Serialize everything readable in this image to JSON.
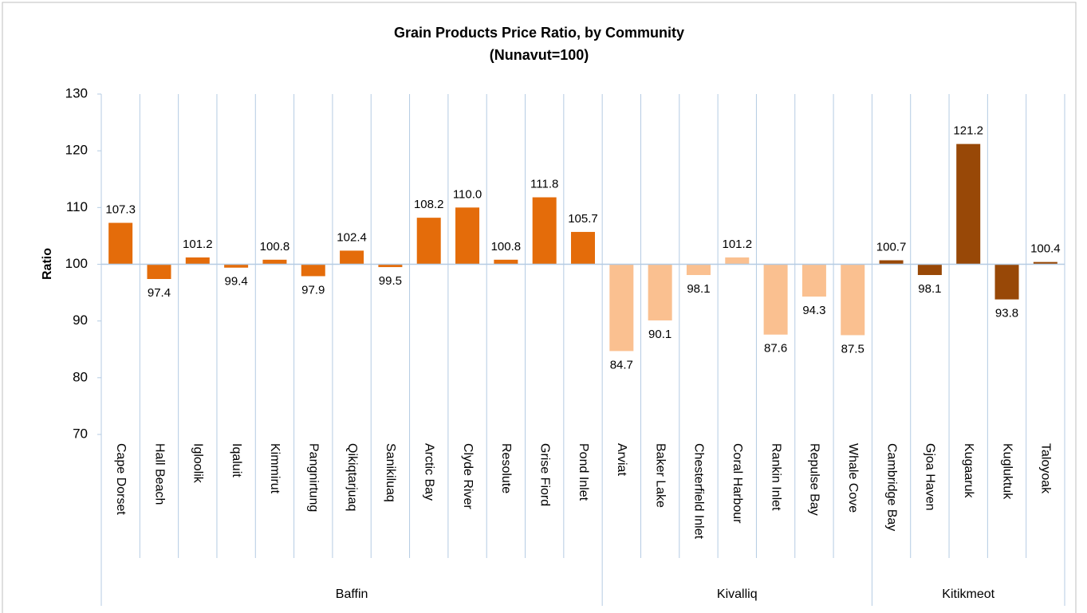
{
  "chart_data": {
    "type": "bar",
    "title": "Grain Products Price Ratio, by Community",
    "subtitle": "(Nunavut=100)",
    "y_label": "Ratio",
    "ylim": [
      70,
      130
    ],
    "yticks": [
      70,
      80,
      90,
      100,
      110,
      120,
      130
    ],
    "bar_base": 100,
    "grid": true,
    "groups": [
      {
        "name": "Baffin",
        "color": "#e46c0a",
        "categories": [
          "Cape Dorset",
          "Hall Beach",
          "Igloolik",
          "Iqaluit",
          "Kimmirut",
          "Pangnirtung",
          "Qikiqtarjuaq",
          "Sanikiluaq",
          "Arctic Bay",
          "Clyde River",
          "Resolute",
          "Grise Fiord",
          "Pond Inlet"
        ],
        "values": [
          107.3,
          97.4,
          101.2,
          99.4,
          100.8,
          97.9,
          102.4,
          99.5,
          108.2,
          110,
          100.8,
          111.8,
          105.7
        ],
        "value_labels": [
          "107.3",
          "97.4",
          "101.2",
          "99.4",
          "100.8",
          "97.9",
          "102.4",
          "99.5",
          "108.2",
          "110.0",
          "100.8",
          "111.8",
          "105.7"
        ]
      },
      {
        "name": "Kivalliq",
        "color": "#fac090",
        "categories": [
          "Arviat",
          "Baker Lake",
          "Chesterfield Inlet",
          "Coral Harbour",
          "Rankin Inlet",
          "Repulse Bay",
          "Whale Cove"
        ],
        "values": [
          84.7,
          90.1,
          98.1,
          101.2,
          87.6,
          94.3,
          87.5
        ],
        "value_labels": [
          "84.7",
          "90.1",
          "98.1",
          "101.2",
          "87.6",
          "94.3",
          "87.5"
        ]
      },
      {
        "name": "Kitikmeot",
        "color": "#984807",
        "categories": [
          "Cambridge Bay",
          "Gjoa Haven",
          "Kugaaruk",
          "Kugluktuk",
          "Taloyoak"
        ],
        "values": [
          100.7,
          98.1,
          121.2,
          93.8,
          100.4
        ],
        "value_labels": [
          "100.7",
          "98.1",
          "121.2",
          "93.8",
          "100.4"
        ]
      }
    ]
  }
}
